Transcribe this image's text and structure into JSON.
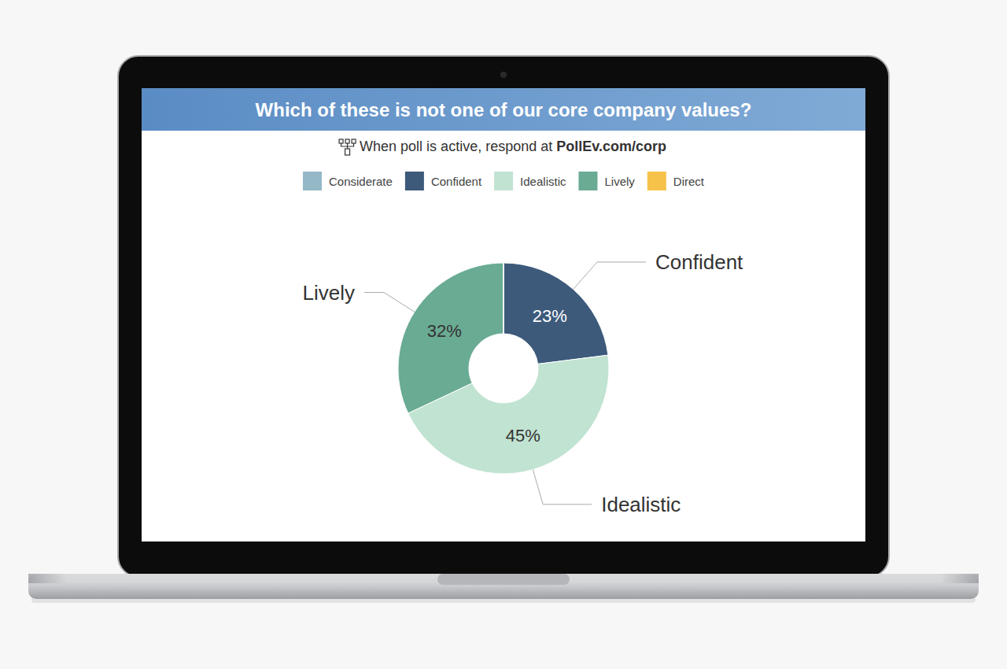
{
  "chart_data": {
    "type": "pie",
    "title": "Which of these is not one of our core company values?",
    "subtitle": "When poll is active, respond at PollEv.com/corp",
    "categories": [
      "Considerate",
      "Confident",
      "Idealistic",
      "Lively",
      "Direct"
    ],
    "values": [
      0,
      23,
      45,
      32,
      0
    ],
    "value_labels": [
      null,
      "23%",
      "45%",
      "32%",
      null
    ],
    "colors": [
      "#95b8c7",
      "#3d5a7b",
      "#c1e3d1",
      "#6aab94",
      "#f7c24a"
    ],
    "data_labels": true,
    "legend": "top"
  }
}
